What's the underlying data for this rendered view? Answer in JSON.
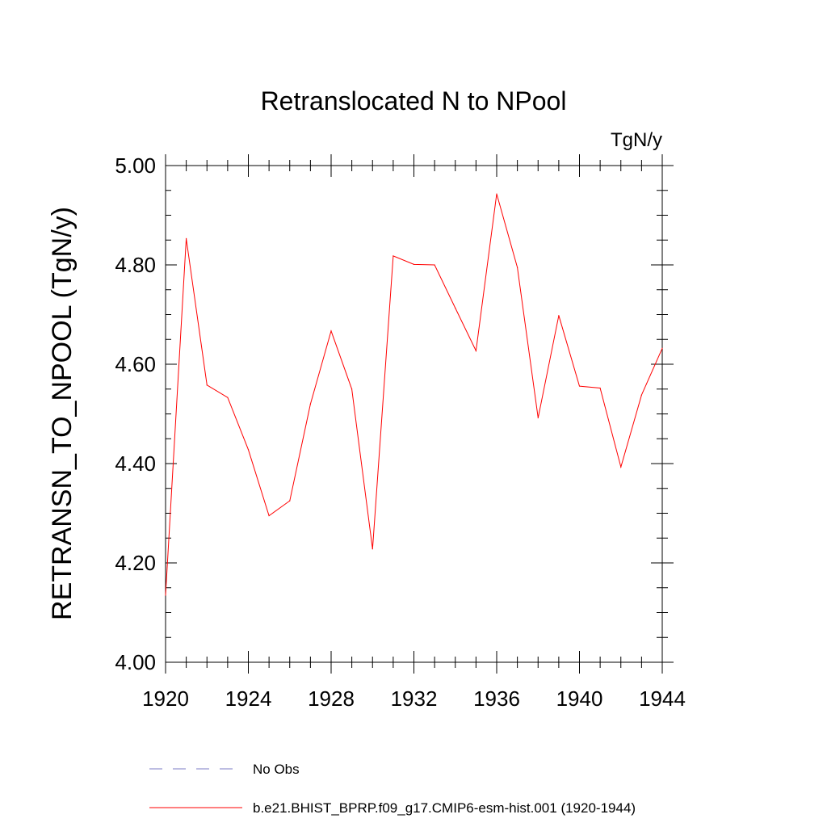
{
  "chart_data": {
    "type": "line",
    "title": "Retranslocated N to NPool",
    "units": "TgN/y",
    "ylabel": "RETRANSN_TO_NPOOL  (TgN/y)",
    "xlabel": "",
    "xlim": [
      1920,
      1944
    ],
    "ylim": [
      4.0,
      5.0
    ],
    "x_ticks": [
      "1920",
      "1924",
      "1928",
      "1932",
      "1936",
      "1940",
      "1944"
    ],
    "y_ticks": [
      "4.00",
      "4.20",
      "4.40",
      "4.60",
      "4.80",
      "5.00"
    ],
    "grid": false,
    "series": [
      {
        "name": "b.e21.BHIST_BPRP.f09_g17.CMIP6-esm-hist.001 (1920-1944)",
        "color": "#ff0000",
        "x": [
          1920,
          1921,
          1922,
          1923,
          1924,
          1925,
          1926,
          1927,
          1928,
          1929,
          1930,
          1931,
          1932,
          1933,
          1934,
          1935,
          1936,
          1937,
          1938,
          1939,
          1940,
          1941,
          1942,
          1943,
          1944
        ],
        "y": [
          4.135,
          4.853,
          4.558,
          4.533,
          4.428,
          4.295,
          4.325,
          4.52,
          4.667,
          4.55,
          4.228,
          4.818,
          4.801,
          4.8,
          4.713,
          4.627,
          4.943,
          4.795,
          4.492,
          4.698,
          4.556,
          4.552,
          4.393,
          4.538,
          4.632
        ]
      }
    ],
    "legend": [
      {
        "label": "No Obs",
        "style": "dashed",
        "color": "#7b7bc4"
      },
      {
        "label": "b.e21.BHIST_BPRP.f09_g17.CMIP6-esm-hist.001 (1920-1944)",
        "style": "solid",
        "color": "#ff0000"
      }
    ],
    "legend_position": "bottom"
  }
}
